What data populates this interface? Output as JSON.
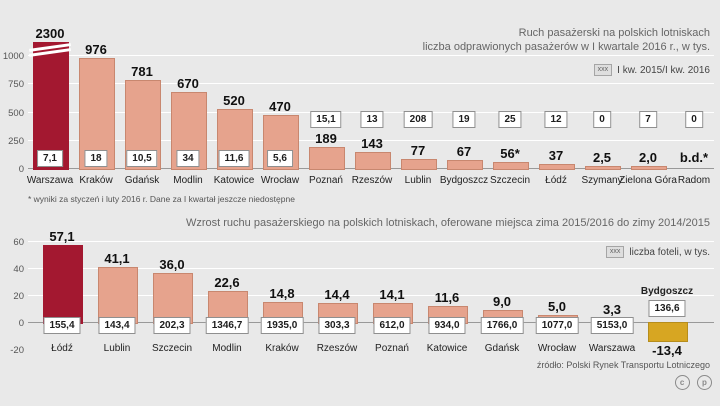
{
  "colors": {
    "bar": "#e6a38d",
    "bar_border": "#c8876f",
    "highlight": "#a31830",
    "negative": "#d7a622",
    "negative_border": "#b68d1c",
    "grid": "#ffffff",
    "axis": "#999999",
    "background": "#e9e9e9"
  },
  "chart_data": [
    {
      "type": "bar",
      "title": "Ruch pasażerski na polskich lotniskach",
      "subtitle": "liczba odprawionych pasażerów w I kwartale 2016 r., w tys.",
      "legend": "I kw. 2015/I kw. 2016",
      "legend_swatch": "xxx",
      "ylabel": "",
      "ylim": [
        0,
        1050
      ],
      "yticks": [
        1000,
        750,
        500,
        250,
        0
      ],
      "highlight": "Warszawa",
      "truncated_bar": "Warszawa",
      "categories": [
        "Warszawa",
        "Kraków",
        "Gdańsk",
        "Modlin",
        "Katowice",
        "Wrocław",
        "Poznań",
        "Rzeszów",
        "Lublin",
        "Bydgoszcz",
        "Szczecin",
        "Łódź",
        "Szymany",
        "Zielona Góra",
        "Radom"
      ],
      "values": [
        2300,
        976,
        781,
        670,
        520,
        470,
        189,
        143,
        77,
        67,
        56,
        37,
        2.5,
        2.0,
        null
      ],
      "value_labels": [
        "2300",
        "976",
        "781",
        "670",
        "520",
        "470",
        "189",
        "143",
        "77",
        "67",
        "56*",
        "37",
        "2,5",
        "2,0",
        "b.d.*"
      ],
      "change_boxes": [
        "7,1",
        "18",
        "10,5",
        "34",
        "11,6",
        "5,6",
        "15,1",
        "13",
        "208",
        "19",
        "25",
        "12",
        "0",
        "7",
        "0"
      ],
      "footnote": "* wyniki za styczeń i luty 2016 r. Dane za I kwartał jeszcze niedostępne"
    },
    {
      "type": "bar",
      "title": "Wzrost ruchu pasażerskiego na polskich lotniskach, oferowane miejsca zima 2015/2016 do zimy 2014/2015",
      "legend": "liczba foteli, w tys.",
      "legend_swatch": "xxx",
      "ylim": [
        -20,
        60
      ],
      "yticks": [
        60,
        40,
        20,
        0,
        -20
      ],
      "highlight": "Łódź",
      "categories": [
        "Łódź",
        "Lublin",
        "Szczecin",
        "Modlin",
        "Kraków",
        "Rzeszów",
        "Poznań",
        "Katowice",
        "Gdańsk",
        "Wrocław",
        "Warszawa",
        "Bydgoszcz"
      ],
      "values": [
        57.1,
        41.1,
        36.0,
        22.6,
        14.8,
        14.4,
        14.1,
        11.6,
        9.0,
        5.0,
        3.3,
        -13.4
      ],
      "value_labels": [
        "57,1",
        "41,1",
        "36,0",
        "22,6",
        "14,8",
        "14,4",
        "14,1",
        "11,6",
        "9,0",
        "5,0",
        "3,3",
        "-13,4"
      ],
      "seat_boxes": [
        "155,4",
        "143,4",
        "202,3",
        "1346,7",
        "1935,0",
        "303,3",
        "612,0",
        "934,0",
        "1766,0",
        "1077,0",
        "5153,0",
        "136,6"
      ]
    }
  ],
  "footer": {
    "source": "źródło:  Polski Rynek Transportu Lotniczego",
    "badge_left": "c",
    "badge_right": "p"
  }
}
